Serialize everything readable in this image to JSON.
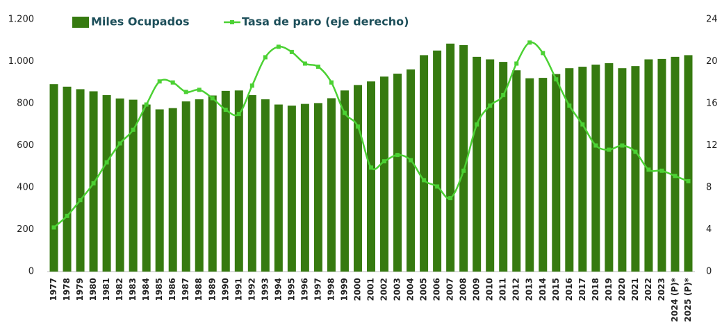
{
  "chart_data": {
    "type": "bar_line",
    "categories": [
      "1977",
      "1978",
      "1979",
      "1980",
      "1981",
      "1982",
      "1983",
      "1984",
      "1985",
      "1986",
      "1987",
      "1988",
      "1989",
      "1990",
      "1991",
      "1992",
      "1993",
      "1994",
      "1995",
      "1996",
      "1997",
      "1998",
      "1999",
      "2000",
      "2001",
      "2002",
      "2003",
      "2004",
      "2005",
      "2006",
      "2007",
      "2008",
      "2009",
      "2010",
      "2011",
      "2012",
      "2013",
      "2014",
      "2015",
      "2016",
      "2017",
      "2018",
      "2019",
      "2020",
      "2021",
      "2022",
      "2023",
      "2024 (P)*",
      "2025 (P)*"
    ],
    "series": [
      {
        "name": "Miles Ocupados",
        "color": "#367a10",
        "type": "bar",
        "values": [
          892,
          880,
          868,
          858,
          840,
          824,
          818,
          795,
          772,
          778,
          810,
          820,
          838,
          860,
          862,
          840,
          820,
          795,
          790,
          798,
          802,
          825,
          862,
          888,
          905,
          928,
          942,
          962,
          1030,
          1052,
          1085,
          1078,
          1022,
          1010,
          998,
          958,
          920,
          922,
          940,
          968,
          975,
          985,
          992,
          968,
          978,
          1010,
          1012,
          1022,
          1030
        ]
      },
      {
        "name": "Tasa de paro (eje derecho)",
        "color": "#4cd134",
        "type": "line",
        "axis": "y2",
        "values": [
          4.2,
          5.3,
          6.8,
          8.4,
          10.4,
          12.2,
          13.5,
          15.9,
          18.1,
          18.0,
          17.1,
          17.3,
          16.5,
          15.4,
          15.0,
          17.7,
          20.4,
          21.4,
          20.9,
          19.8,
          19.5,
          18.0,
          15.1,
          13.8,
          9.9,
          10.5,
          11.1,
          10.6,
          8.7,
          8.1,
          7.0,
          9.6,
          14.0,
          15.8,
          16.8,
          19.8,
          21.8,
          20.8,
          18.3,
          15.8,
          14.0,
          12.0,
          11.6,
          12.0,
          11.4,
          9.7,
          9.6,
          9.1,
          8.6
        ]
      }
    ],
    "ylim": [
      0,
      1200
    ],
    "yticks": [
      0,
      200,
      400,
      600,
      800,
      {
        "value": 1000,
        "label": "1.000"
      },
      {
        "value": 1200,
        "label": "1.200"
      }
    ],
    "y2lim": [
      0,
      24
    ],
    "y2ticks": [
      0,
      4,
      8,
      12,
      16,
      20,
      24
    ],
    "legend": "top"
  }
}
